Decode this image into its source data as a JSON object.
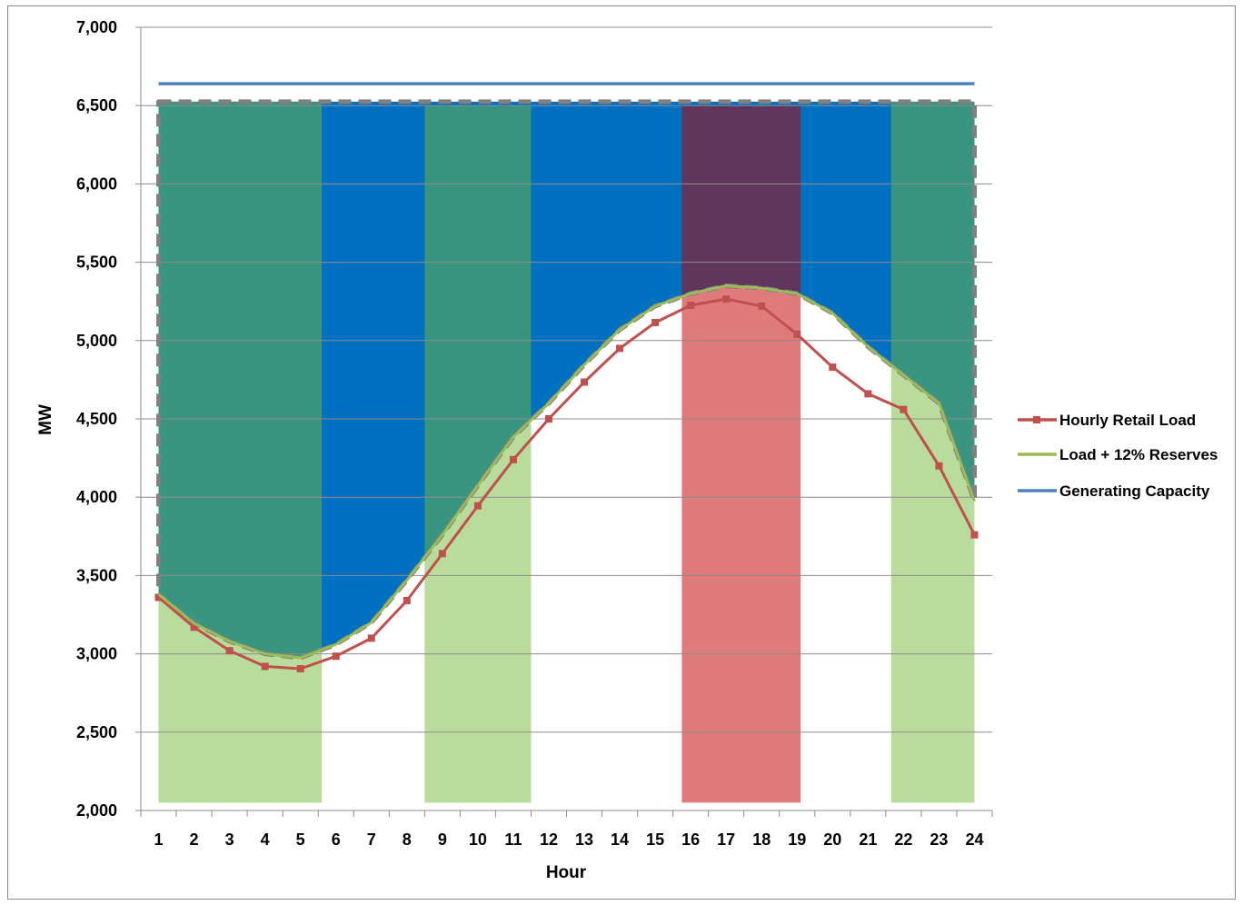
{
  "chart_data": {
    "type": "line",
    "xlabel": "Hour",
    "ylabel": "MW",
    "ylim": [
      2000,
      7000
    ],
    "yticks": [
      2000,
      2500,
      3000,
      3500,
      4000,
      4500,
      5000,
      5500,
      6000,
      6500,
      7000
    ],
    "ytick_labels": [
      "2,000",
      "2,500",
      "3,000",
      "3,500",
      "4,000",
      "4,500",
      "5,000",
      "5,500",
      "6,000",
      "6,500",
      "7,000"
    ],
    "categories": [
      "1",
      "2",
      "3",
      "4",
      "5",
      "6",
      "7",
      "8",
      "9",
      "10",
      "11",
      "12",
      "13",
      "14",
      "15",
      "16",
      "17",
      "18",
      "19",
      "20",
      "21",
      "22",
      "23",
      "24"
    ],
    "grid": true,
    "legend_position": "right",
    "series": [
      {
        "name": "Hourly Retail Load",
        "color": "#c0504d",
        "marker": "square",
        "values": [
          3360,
          3170,
          3020,
          2920,
          2905,
          2985,
          3100,
          3340,
          3640,
          3945,
          4240,
          4500,
          4735,
          4950,
          5115,
          5225,
          5265,
          5220,
          5040,
          4830,
          4660,
          4560,
          4200,
          3760
        ]
      },
      {
        "name": "Load + 12% Reserves",
        "color": "#9bbb59",
        "values": [
          3380,
          3195,
          3080,
          3000,
          2975,
          3060,
          3200,
          3470,
          3760,
          4075,
          4385,
          4600,
          4845,
          5070,
          5220,
          5300,
          5350,
          5335,
          5300,
          5175,
          4960,
          4780,
          4600,
          3975
        ]
      },
      {
        "name": "Generating Capacity",
        "color": "#4f81bd",
        "values": [
          6640,
          6640,
          6640,
          6640,
          6640,
          6640,
          6640,
          6640,
          6640,
          6640,
          6640,
          6640,
          6640,
          6640,
          6640,
          6640,
          6640,
          6640,
          6640,
          6640,
          6640,
          6640,
          6640,
          6640
        ]
      }
    ],
    "boundary_series": {
      "color": "#808080",
      "values": [
        3380,
        3195,
        3080,
        3000,
        2975,
        3060,
        3200,
        3470,
        3760,
        4075,
        4385,
        4600,
        4845,
        5070,
        5220,
        5300,
        5350,
        5335,
        5300,
        5175,
        4960,
        4780,
        4600,
        3975
      ],
      "top": 6525
    },
    "available_area_color": "#0070c0",
    "shaded_periods": [
      {
        "from": 1,
        "to": 5.6,
        "top_color": "#3a9580",
        "bottom_color": "#b9dc9c",
        "top_level": 6525,
        "bottom_level": 2050
      },
      {
        "from": 8.5,
        "to": 11.5,
        "top_color": "#3a9580",
        "bottom_color": "#b9dc9c",
        "top_level": 6500,
        "bottom_level": 2050
      },
      {
        "from": 15.75,
        "to": 19.1,
        "top_color": "#60365c",
        "bottom_color": "#df7b7b",
        "top_level": 6500,
        "bottom_level": 2050
      },
      {
        "from": 21.65,
        "to": 24,
        "top_color": "#3a9580",
        "bottom_color": "#b9dc9c",
        "top_level": 6525,
        "bottom_level": 2050
      }
    ]
  }
}
